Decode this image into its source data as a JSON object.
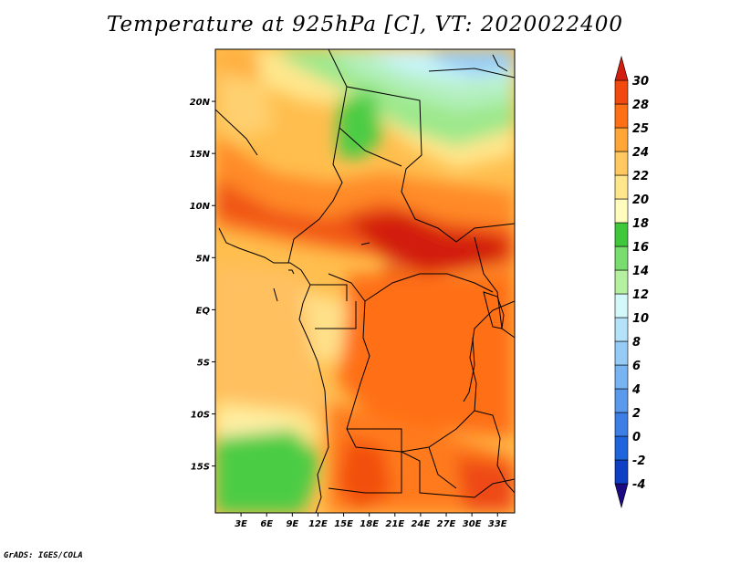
{
  "title": "Temperature at 925hPa [C], VT: 2020022400",
  "credit": "GrADS: IGES/COLA",
  "map": {
    "lon_range": [
      0,
      35
    ],
    "lat_range": [
      -19.5,
      25
    ],
    "lon_ticks": [
      {
        "value": 3,
        "label": "3E"
      },
      {
        "value": 6,
        "label": "6E"
      },
      {
        "value": 9,
        "label": "9E"
      },
      {
        "value": 12,
        "label": "12E"
      },
      {
        "value": 15,
        "label": "15E"
      },
      {
        "value": 18,
        "label": "18E"
      },
      {
        "value": 21,
        "label": "21E"
      },
      {
        "value": 24,
        "label": "24E"
      },
      {
        "value": 27,
        "label": "27E"
      },
      {
        "value": 30,
        "label": "30E"
      },
      {
        "value": 33,
        "label": "33E"
      }
    ],
    "lat_ticks": [
      {
        "value": 20,
        "label": "20N"
      },
      {
        "value": 15,
        "label": "15N"
      },
      {
        "value": 10,
        "label": "10N"
      },
      {
        "value": 5,
        "label": "5N"
      },
      {
        "value": 0,
        "label": "EQ"
      },
      {
        "value": -5,
        "label": "5S"
      },
      {
        "value": -10,
        "label": "10S"
      },
      {
        "value": -15,
        "label": "15S"
      }
    ]
  },
  "colorbar": {
    "levels": [
      "-4",
      "-2",
      "0",
      "2",
      "4",
      "6",
      "8",
      "10",
      "12",
      "14",
      "16",
      "18",
      "20",
      "22",
      "24",
      "25",
      "28",
      "30"
    ],
    "colors": [
      "#1c0a82",
      "#0e3fc4",
      "#1e64dc",
      "#3c7ee6",
      "#5a99ec",
      "#78b4f2",
      "#96cbf5",
      "#b4e2f8",
      "#d2f8fa",
      "#b4f0a0",
      "#78dc6e",
      "#40c83c",
      "#fffcbe",
      "#ffe68c",
      "#ffc860",
      "#ffa636",
      "#ff7014",
      "#f24a0e",
      "#d21e0e"
    ]
  }
}
